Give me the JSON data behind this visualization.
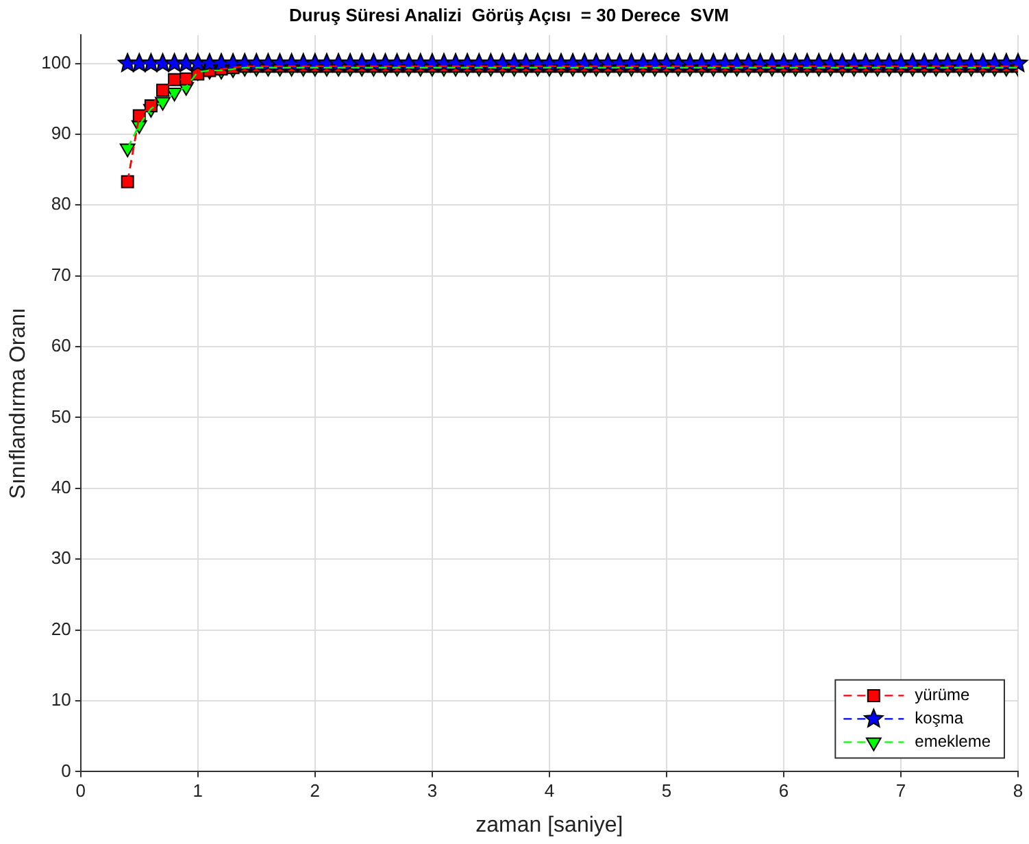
{
  "chart_data": {
    "type": "line",
    "title": "Duruş Süresi Analizi  Görüş Açısı  = 30 Derece  SVM",
    "xlabel": "zaman [saniye]",
    "ylabel": "Sınıflandırma Oranı",
    "x": [
      0.4,
      0.5,
      0.6,
      0.7,
      0.8,
      0.9,
      1.0,
      1.1,
      1.2,
      1.3,
      1.4,
      1.5,
      1.6,
      1.7,
      1.8,
      1.9,
      2.0,
      2.1,
      2.2,
      2.3,
      2.4,
      2.5,
      2.6,
      2.7,
      2.8,
      2.9,
      3.0,
      3.1,
      3.2,
      3.3,
      3.4,
      3.5,
      3.6,
      3.7,
      3.8,
      3.9,
      4.0,
      4.1,
      4.2,
      4.3,
      4.4,
      4.5,
      4.6,
      4.7,
      4.8,
      4.9,
      5.0,
      5.1,
      5.2,
      5.3,
      5.4,
      5.5,
      5.6,
      5.7,
      5.8,
      5.9,
      6.0,
      6.1,
      6.2,
      6.3,
      6.4,
      6.5,
      6.6,
      6.7,
      6.8,
      6.9,
      7.0,
      7.1,
      7.2,
      7.3,
      7.4,
      7.5,
      7.6,
      7.7,
      7.8,
      7.9,
      8.0
    ],
    "series": [
      {
        "name": "yürüme",
        "color": "#ff0000",
        "marker": "square",
        "values": [
          83.3,
          92.6,
          94,
          96.2,
          97.7,
          97.8,
          98.5,
          99,
          99.2,
          99.4,
          99.6,
          99.6,
          99.6,
          99.6,
          99.6,
          99.6,
          99.6,
          99.6,
          99.6,
          99.6,
          99.6,
          99.6,
          99.6,
          99.6,
          99.6,
          99.6,
          99.6,
          99.6,
          99.6,
          99.6,
          99.6,
          99.6,
          99.6,
          99.6,
          99.6,
          99.6,
          99.6,
          99.6,
          99.6,
          99.6,
          99.6,
          99.6,
          99.6,
          99.6,
          99.6,
          99.6,
          99.6,
          99.6,
          99.6,
          99.6,
          99.6,
          99.6,
          99.6,
          99.6,
          99.6,
          99.6,
          99.6,
          99.6,
          99.6,
          99.6,
          99.6,
          99.6,
          99.6,
          99.6,
          99.6,
          99.6,
          99.6,
          99.6,
          99.6,
          99.6,
          99.6,
          99.6,
          99.6,
          99.6,
          99.6,
          99.6,
          99.6
        ]
      },
      {
        "name": "koşma",
        "color": "#0000ff",
        "marker": "star",
        "values": [
          100,
          100,
          100,
          100,
          100,
          100,
          100,
          100,
          100,
          100,
          100,
          100,
          100,
          100,
          100,
          100,
          100,
          100,
          100,
          100,
          100,
          100,
          100,
          100,
          100,
          100,
          100,
          100,
          100,
          100,
          100,
          100,
          100,
          100,
          100,
          100,
          100,
          100,
          100,
          100,
          100,
          100,
          100,
          100,
          100,
          100,
          100,
          100,
          100,
          100,
          100,
          100,
          100,
          100,
          100,
          100,
          100,
          100,
          100,
          100,
          100,
          100,
          100,
          100,
          100,
          100,
          100,
          100,
          100,
          100,
          100,
          100,
          100,
          100,
          100,
          100,
          100
        ]
      },
      {
        "name": "emekleme",
        "color": "#00ff00",
        "marker": "triangle",
        "values": [
          88,
          91.3,
          93.6,
          94.6,
          95.9,
          96.7,
          98.8,
          99,
          99,
          99.2,
          99.4,
          99.4,
          99.4,
          99.4,
          99.4,
          99.4,
          99.4,
          99.4,
          99.4,
          99.4,
          99.4,
          99.4,
          99.4,
          99.4,
          99.4,
          99.4,
          99.4,
          99.4,
          99.4,
          99.4,
          99.4,
          99.4,
          99.4,
          99.4,
          99.4,
          99.4,
          99.4,
          99.4,
          99.4,
          99.4,
          99.4,
          99.4,
          99.4,
          99.4,
          99.4,
          99.4,
          99.4,
          99.4,
          99.4,
          99.4,
          99.4,
          99.4,
          99.4,
          99.4,
          99.4,
          99.4,
          99.4,
          99.4,
          99.4,
          99.4,
          99.4,
          99.4,
          99.4,
          99.4,
          99.4,
          99.4,
          99.4,
          99.4,
          99.4,
          99.4,
          99.4,
          99.4,
          99.4,
          99.4,
          99.4,
          99.4,
          99.4
        ]
      }
    ],
    "xlim": [
      0,
      8
    ],
    "xticks": [
      0,
      1,
      2,
      3,
      4,
      5,
      6,
      7,
      8
    ],
    "ylim": [
      0,
      104
    ],
    "yticks": [
      0,
      10,
      20,
      30,
      40,
      50,
      60,
      70,
      80,
      90,
      100
    ],
    "grid": true,
    "legend": "bottom right",
    "line_style": "dashed"
  }
}
